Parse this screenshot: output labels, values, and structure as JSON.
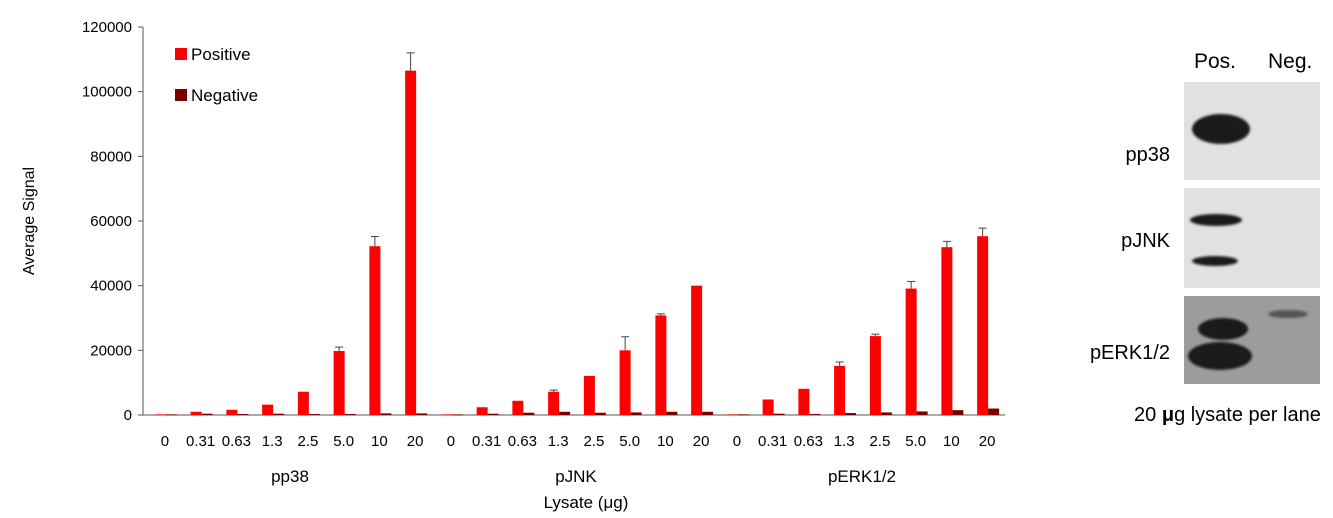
{
  "chart_data": {
    "type": "bar",
    "ylabel": "Average Signal",
    "xlabel": "Lysate (μg)",
    "ylim": [
      0,
      120000
    ],
    "yticks": [
      "0",
      "20000",
      "40000",
      "60000",
      "80000",
      "100000",
      "120000"
    ],
    "legend_position": "top-left",
    "groups": [
      {
        "name": "pp38",
        "categories": [
          "0",
          "0.31",
          "0.63",
          "1.3",
          "2.5",
          "5.0",
          "10",
          "20"
        ],
        "series": [
          {
            "name": "Positive",
            "color": "#ff0000",
            "values": [
              200,
              1000,
              1600,
              3200,
              7200,
              19800,
              52200,
              106500
            ],
            "errors": [
              0,
              0,
              0,
              0,
              0,
              1200,
              3000,
              5500
            ]
          },
          {
            "name": "Negative",
            "color": "#7a0000",
            "values": [
              200,
              400,
              300,
              400,
              300,
              300,
              500,
              500
            ],
            "errors": [
              0,
              0,
              0,
              0,
              0,
              0,
              0,
              0
            ]
          }
        ]
      },
      {
        "name": "pJNK",
        "categories": [
          "0",
          "0.31",
          "0.63",
          "1.3",
          "2.5",
          "5.0",
          "10",
          "20"
        ],
        "series": [
          {
            "name": "Positive",
            "color": "#ff0000",
            "values": [
              200,
              2400,
              4400,
              7200,
              12100,
              20000,
              30800,
              40000
            ],
            "errors": [
              0,
              0,
              0,
              500,
              0,
              4200,
              500,
              0
            ]
          },
          {
            "name": "Negative",
            "color": "#7a0000",
            "values": [
              200,
              400,
              700,
              1000,
              700,
              800,
              1000,
              1000
            ],
            "errors": [
              0,
              0,
              0,
              0,
              0,
              0,
              0,
              0
            ]
          }
        ]
      },
      {
        "name": "pERK1/2",
        "categories": [
          "0",
          "0.31",
          "0.63",
          "1.3",
          "2.5",
          "5.0",
          "10",
          "20"
        ],
        "series": [
          {
            "name": "Positive",
            "color": "#ff0000",
            "values": [
              200,
              4800,
              8100,
              15200,
              24400,
              39100,
              51900,
              55300
            ],
            "errors": [
              0,
              0,
              0,
              1200,
              600,
              2200,
              1800,
              2500
            ]
          },
          {
            "name": "Negative",
            "color": "#7a0000",
            "values": [
              200,
              400,
              300,
              600,
              800,
              1100,
              1500,
              2000
            ],
            "errors": [
              0,
              0,
              0,
              0,
              0,
              0,
              0,
              0
            ]
          }
        ]
      }
    ]
  },
  "blot": {
    "col_labels": [
      "Pos.",
      "Neg."
    ],
    "rows": [
      "pp38",
      "pJNK",
      "pERK1/2"
    ],
    "caption_prefix": "20 ",
    "caption_unit": "μ",
    "caption_suffix": "g lysate per lane"
  }
}
